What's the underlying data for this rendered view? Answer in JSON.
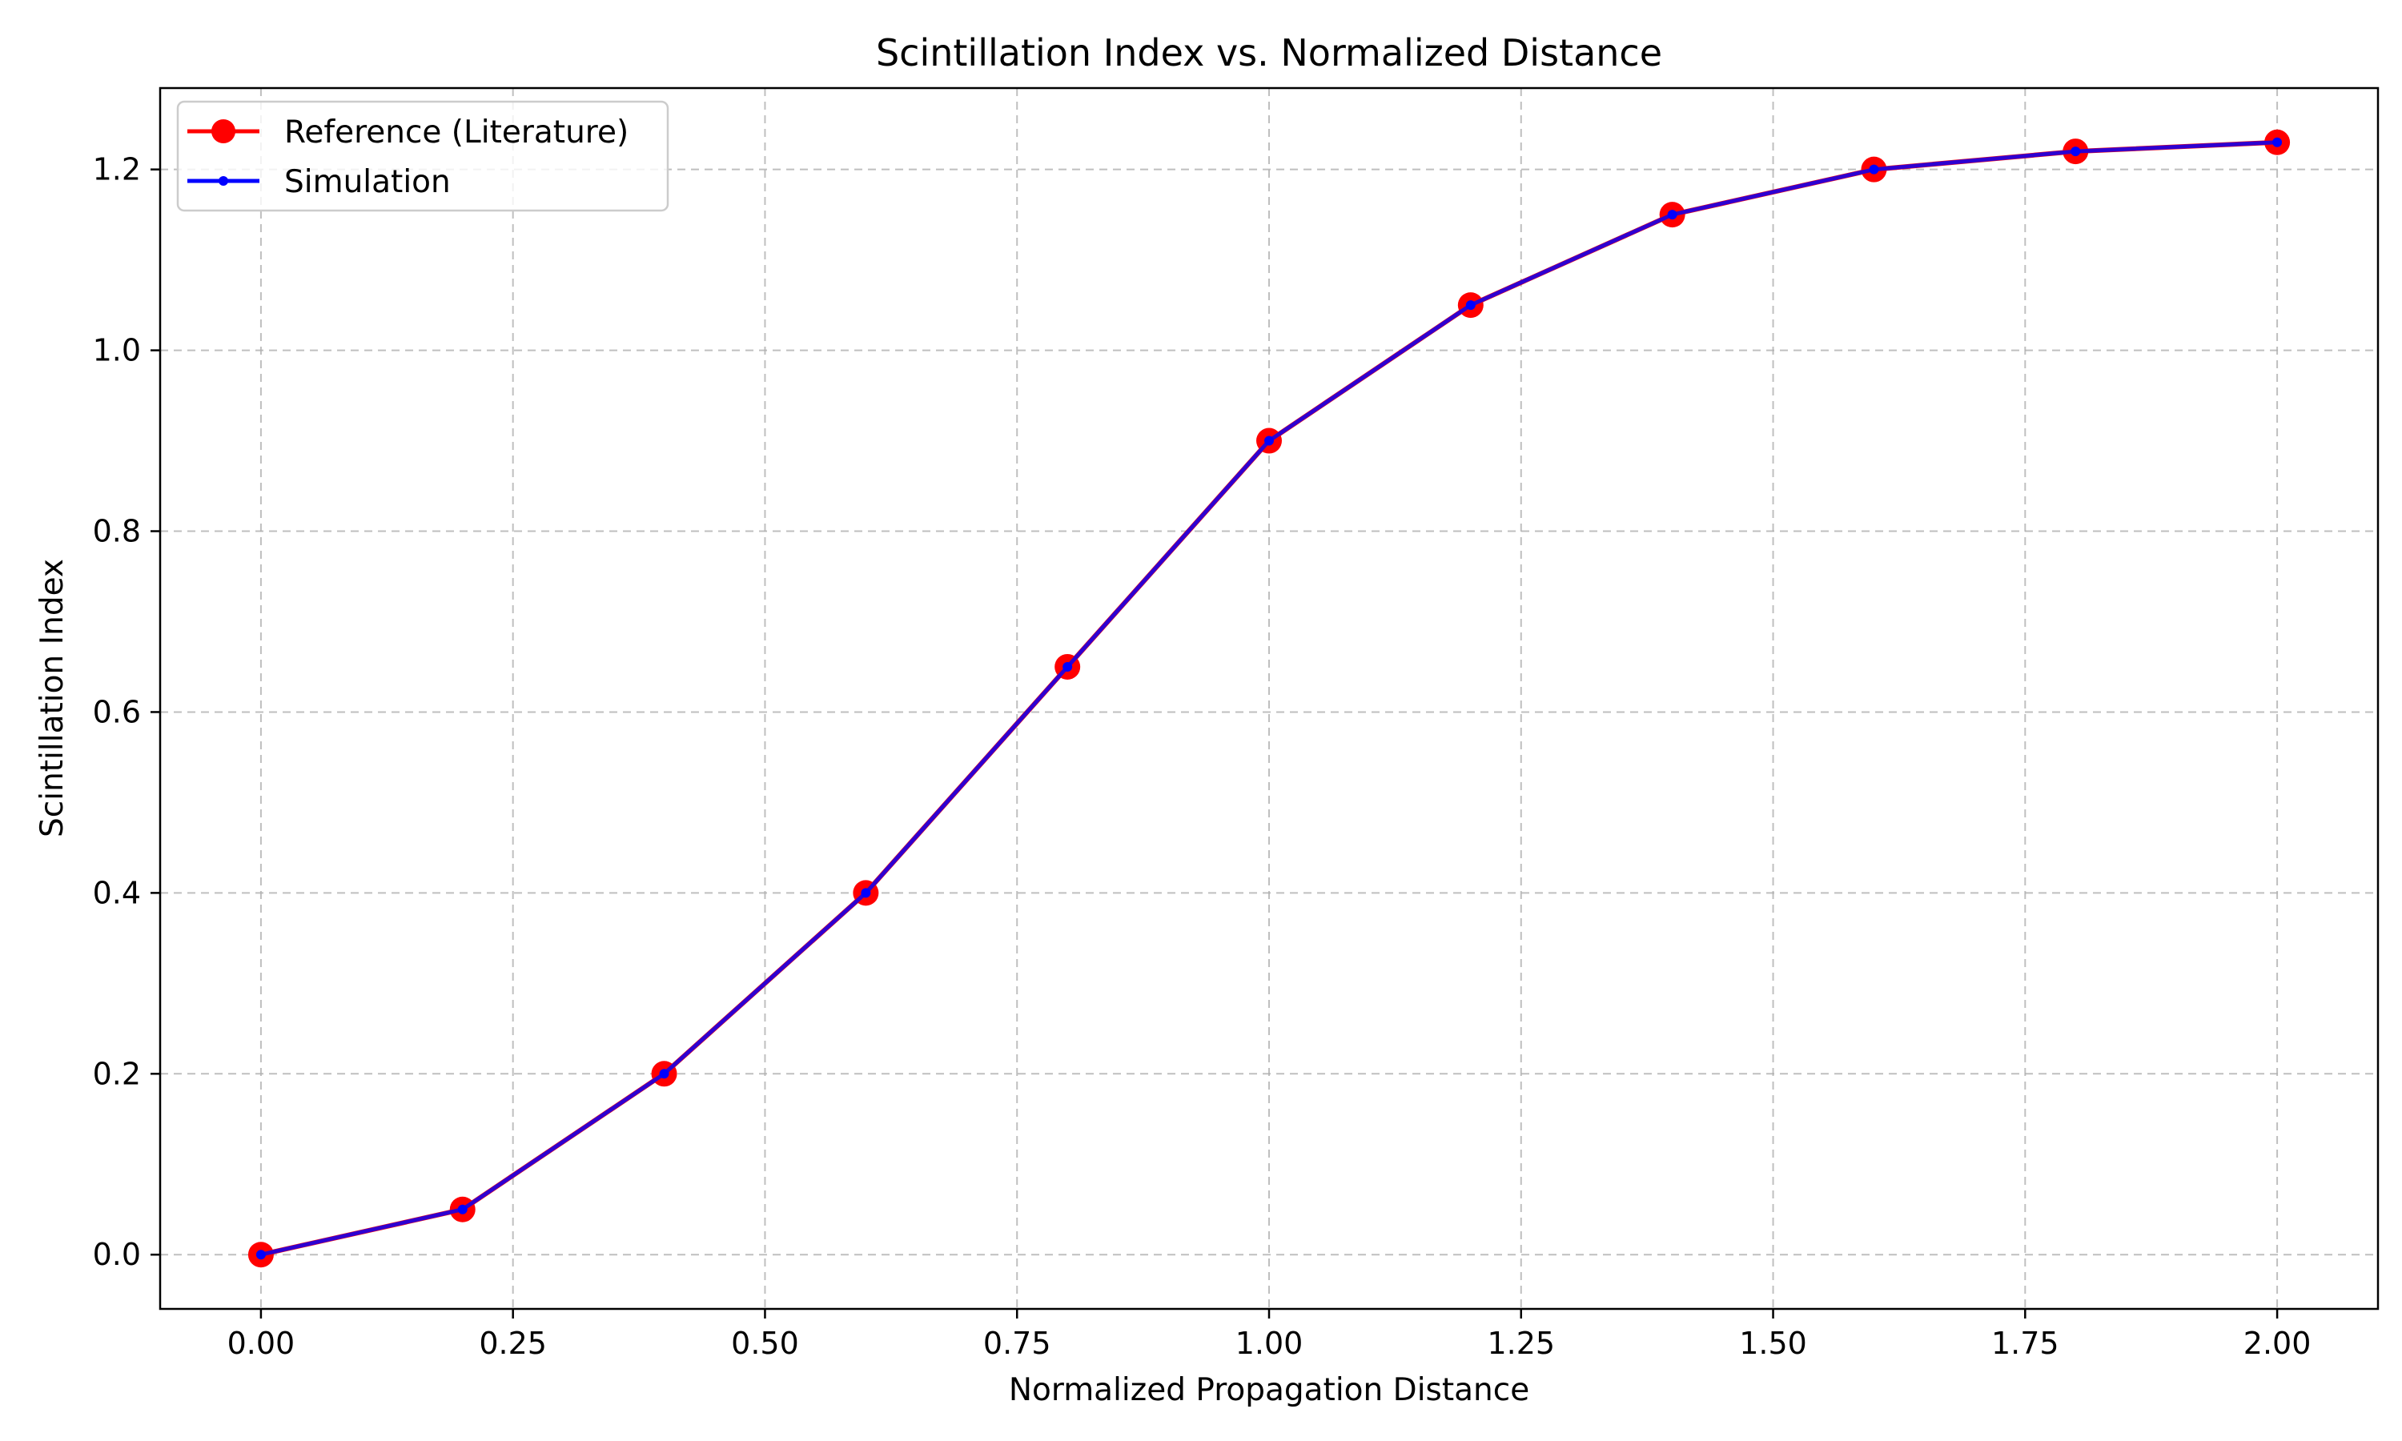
{
  "chart_data": {
    "type": "line",
    "title": "Scintillation Index vs. Normalized Distance",
    "xlabel": "Normalized Propagation Distance",
    "ylabel": "Scintillation Index",
    "xlim": [
      -0.1,
      2.1
    ],
    "ylim": [
      -0.06,
      1.29
    ],
    "xticks": [
      0.0,
      0.25,
      0.5,
      0.75,
      1.0,
      1.25,
      1.5,
      1.75,
      2.0
    ],
    "xtick_labels": [
      "0.00",
      "0.25",
      "0.50",
      "0.75",
      "1.00",
      "1.25",
      "1.50",
      "1.75",
      "2.00"
    ],
    "yticks": [
      0.0,
      0.2,
      0.4,
      0.6,
      0.8,
      1.0,
      1.2
    ],
    "ytick_labels": [
      "0.0",
      "0.2",
      "0.4",
      "0.6",
      "0.8",
      "1.0",
      "1.2"
    ],
    "grid": true,
    "legend_position": "top-left",
    "x": [
      0.0,
      0.2,
      0.4,
      0.6,
      0.8,
      1.0,
      1.2,
      1.4,
      1.6,
      1.8,
      2.0
    ],
    "series": [
      {
        "name": "Reference (Literature)",
        "color": "#ff0000",
        "marker": "large-circle",
        "values": [
          0.0,
          0.05,
          0.2,
          0.4,
          0.65,
          0.9,
          1.05,
          1.15,
          1.2,
          1.22,
          1.23
        ]
      },
      {
        "name": "Simulation",
        "color": "#0000ff",
        "marker": "small-dot",
        "values": [
          0.0,
          0.05,
          0.2,
          0.4,
          0.65,
          0.9,
          1.05,
          1.15,
          1.2,
          1.22,
          1.23
        ]
      }
    ]
  }
}
